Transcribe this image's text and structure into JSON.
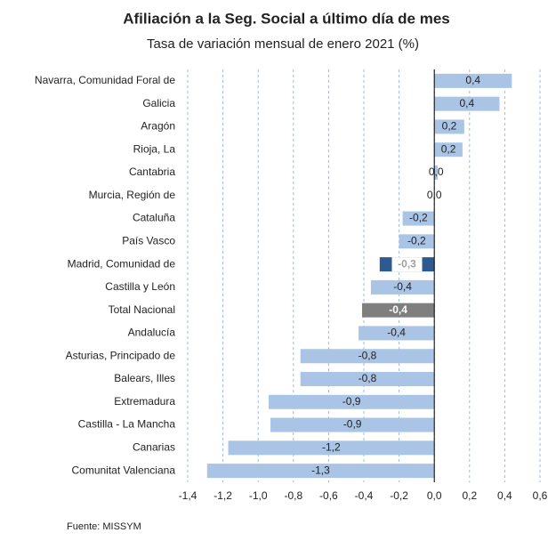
{
  "chart_data": {
    "type": "bar",
    "orientation": "horizontal",
    "title": "Afiliación a la Seg. Social a último día de mes",
    "subtitle": "Tasa de variación mensual de enero 2021 (%)",
    "categories": [
      "Navarra, Comunidad Foral de",
      "Galicia",
      "Aragón",
      "Rioja, La",
      "Cantabria",
      "Murcia, Región de",
      "Cataluña",
      "País Vasco",
      "Madrid, Comunidad de",
      "Castilla y León",
      "Total Nacional",
      "Andalucía",
      "Asturias, Principado de",
      "Balears, Illes",
      "Extremadura",
      "Castilla - La Mancha",
      "Canarias",
      "Comunitat Valenciana"
    ],
    "values": [
      0.44,
      0.37,
      0.17,
      0.16,
      0.02,
      0.0,
      -0.18,
      -0.2,
      -0.31,
      -0.36,
      -0.41,
      -0.43,
      -0.76,
      -0.76,
      -0.94,
      -0.93,
      -1.17,
      -1.29
    ],
    "value_labels": [
      "0,4",
      "0,4",
      "0,2",
      "0,2",
      "0,0",
      "0,0",
      "-0,2",
      "-0,2",
      "-0,3",
      "-0,4",
      "-0,4",
      "-0,4",
      "-0,8",
      "-0,8",
      "-0,9",
      "-0,9",
      "-1,2",
      "-1,3"
    ],
    "colors": [
      "#a9c4e4",
      "#a9c4e4",
      "#a9c4e4",
      "#a9c4e4",
      "#a9c4e4",
      "#a9c4e4",
      "#a9c4e4",
      "#a9c4e4",
      "#2e5a94",
      "#a9c4e4",
      "#7f7f7f",
      "#a9c4e4",
      "#a9c4e4",
      "#a9c4e4",
      "#a9c4e4",
      "#a9c4e4",
      "#a9c4e4",
      "#a9c4e4"
    ],
    "xlim": [
      -1.4,
      0.6
    ],
    "xticks": [
      {
        "value": -1.4,
        "label": "-1,4"
      },
      {
        "value": -1.2,
        "label": "-1,2"
      },
      {
        "value": -1.0,
        "label": "-1,0"
      },
      {
        "value": -0.8,
        "label": "-0,8"
      },
      {
        "value": -0.6,
        "label": "-0,6"
      },
      {
        "value": -0.4,
        "label": "-0,4"
      },
      {
        "value": -0.2,
        "label": "-0,2"
      },
      {
        "value": 0,
        "label": "0,0"
      },
      {
        "value": 0.2,
        "label": "0,2"
      },
      {
        "value": 0.4,
        "label": "0,4"
      },
      {
        "value": 0.6,
        "label": "0,6"
      }
    ],
    "grid": true,
    "source": "Fuente: MISSYM"
  }
}
